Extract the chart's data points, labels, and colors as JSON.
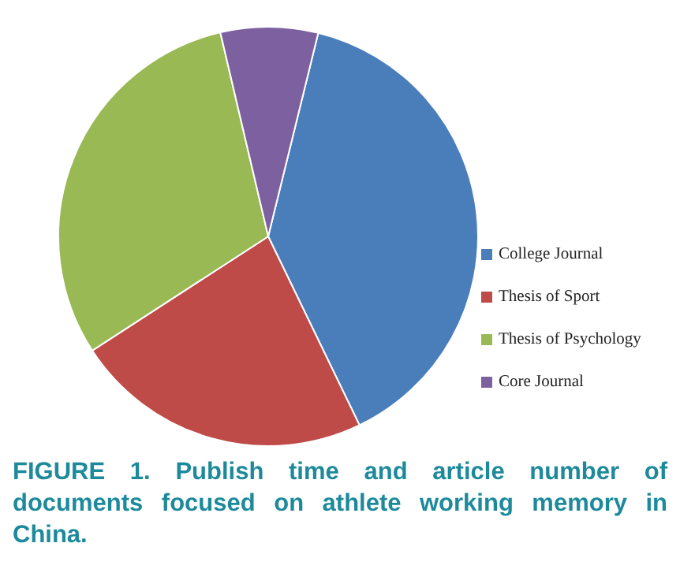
{
  "chart_data": {
    "type": "pie",
    "title": "FIGURE 1. Publish time and article number of documents focused on athlete working memory in China.",
    "categories": [
      "College Journal",
      "Thesis of Sport",
      "Thesis of Psychology",
      "Core Journal"
    ],
    "values": [
      39,
      23,
      30.5,
      7.5
    ],
    "colors": [
      "#4a7ebb",
      "#be4b48",
      "#98b954",
      "#7d60a0"
    ],
    "legend": "right"
  }
}
